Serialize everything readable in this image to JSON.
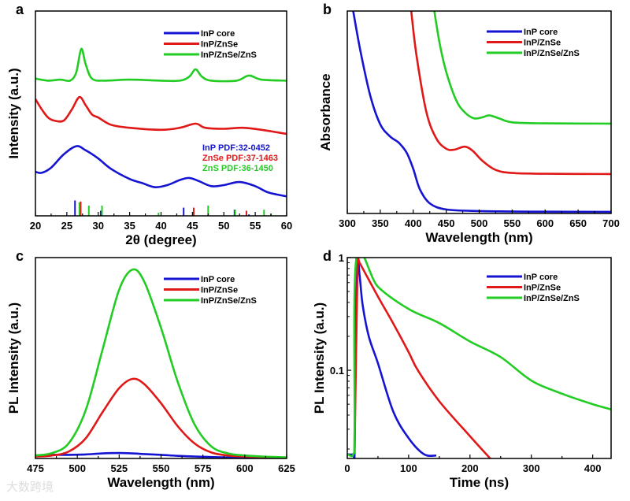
{
  "colors": {
    "InP core": "#1414d2",
    "InP/ZnSe": "#e01818",
    "InP/ZnSe/ZnS": "#22cc22"
  },
  "watermark": "大数跨境",
  "chart_data": [
    {
      "panel": "a",
      "type": "line",
      "xlabel": "2θ (degree)",
      "ylabel": "Intensity (a.u.)",
      "xlim": [
        20,
        60
      ],
      "ylim": [
        0,
        100
      ],
      "xticks": [
        20,
        25,
        30,
        35,
        40,
        45,
        50,
        55,
        60
      ],
      "legend": "top-right",
      "series": [
        {
          "name": "InP core",
          "points": [
            [
              20,
              21.5
            ],
            [
              21,
              21
            ],
            [
              22.5,
              23.5
            ],
            [
              24.5,
              30
            ],
            [
              26.5,
              34
            ],
            [
              28,
              32
            ],
            [
              30,
              28
            ],
            [
              32,
              23
            ],
            [
              35,
              18
            ],
            [
              37,
              16
            ],
            [
              39,
              14
            ],
            [
              41,
              15
            ],
            [
              43,
              17.5
            ],
            [
              44.5,
              18.5
            ],
            [
              46,
              17
            ],
            [
              48,
              14.5
            ],
            [
              50,
              15
            ],
            [
              52.5,
              16.5
            ],
            [
              55,
              14.5
            ],
            [
              57,
              11.5
            ],
            [
              60,
              9.5
            ]
          ]
        },
        {
          "name": "InP/ZnSe",
          "points": [
            [
              20,
              57
            ],
            [
              21,
              52
            ],
            [
              22,
              48
            ],
            [
              23,
              46.5
            ],
            [
              24.5,
              46.5
            ],
            [
              25.8,
              52
            ],
            [
              27,
              58
            ],
            [
              28,
              54
            ],
            [
              29,
              49.5
            ],
            [
              30,
              48
            ],
            [
              32,
              44.5
            ],
            [
              35,
              43
            ],
            [
              40,
              42
            ],
            [
              43,
              43
            ],
            [
              45.5,
              45
            ],
            [
              47,
              43
            ],
            [
              50,
              42.5
            ],
            [
              53,
              43
            ],
            [
              56,
              42
            ],
            [
              60,
              40
            ]
          ]
        },
        {
          "name": "InP/ZnSe/ZnS",
          "points": [
            [
              20,
              67
            ],
            [
              22,
              66
            ],
            [
              24,
              66.5
            ],
            [
              25.5,
              66
            ],
            [
              26.5,
              70
            ],
            [
              27.3,
              81.5
            ],
            [
              28,
              74
            ],
            [
              29,
              67
            ],
            [
              31,
              66
            ],
            [
              35,
              66.5
            ],
            [
              40,
              66
            ],
            [
              43,
              66
            ],
            [
              44.5,
              68
            ],
            [
              45.5,
              71.5
            ],
            [
              46.5,
              68
            ],
            [
              48,
              66
            ],
            [
              52,
              66
            ],
            [
              54,
              68.5
            ],
            [
              56,
              66.5
            ],
            [
              60,
              66
            ]
          ]
        }
      ],
      "references": [
        {
          "label": "InP PDF:32-0452",
          "color": "#1414d2",
          "sticks": [
            [
              26.3,
              7.5
            ],
            [
              30.4,
              2.5
            ],
            [
              43.6,
              4
            ],
            [
              51.7,
              3
            ],
            [
              54,
              0.7
            ]
          ]
        },
        {
          "label": "ZnSe PDF:37-1463",
          "color": "#e01818",
          "sticks": [
            [
              27.2,
              7
            ],
            [
              45.2,
              4
            ],
            [
              53.6,
              2.5
            ]
          ]
        },
        {
          "label": "ZnS PDF:36-1450",
          "color": "#22cc22",
          "sticks": [
            [
              27.0,
              6.5
            ],
            [
              28.5,
              5
            ],
            [
              30.6,
              5
            ],
            [
              39.6,
              1.5
            ],
            [
              47.5,
              5
            ],
            [
              51.8,
              3
            ],
            [
              56.4,
              3
            ],
            [
              57.5,
              1
            ]
          ]
        }
      ]
    },
    {
      "panel": "b",
      "type": "line",
      "xlabel": "Wavelength (nm)",
      "ylabel": "Absorbance",
      "xlim": [
        300,
        700
      ],
      "ylim": [
        0,
        100
      ],
      "xticks": [
        300,
        350,
        400,
        450,
        500,
        550,
        600,
        650,
        700
      ],
      "legend": "top-right",
      "series": [
        {
          "name": "InP core",
          "points": [
            [
              309,
              100
            ],
            [
              320,
              80
            ],
            [
              335,
              58
            ],
            [
              350,
              44
            ],
            [
              365,
              38
            ],
            [
              378,
              35
            ],
            [
              390,
              30
            ],
            [
              400,
              22
            ],
            [
              410,
              12
            ],
            [
              425,
              5
            ],
            [
              450,
              2
            ],
            [
              500,
              1.2
            ],
            [
              600,
              0.9
            ],
            [
              700,
              0.8
            ]
          ]
        },
        {
          "name": "InP/ZnSe",
          "points": [
            [
              397,
              100
            ],
            [
              405,
              78
            ],
            [
              420,
              50
            ],
            [
              435,
              37
            ],
            [
              450,
              32
            ],
            [
              462,
              31.5
            ],
            [
              478,
              33
            ],
            [
              490,
              31
            ],
            [
              505,
              26
            ],
            [
              525,
              21.5
            ],
            [
              550,
              20
            ],
            [
              600,
              19.6
            ],
            [
              700,
              19.5
            ]
          ]
        },
        {
          "name": "InP/ZnSe/ZnS",
          "points": [
            [
              432,
              100
            ],
            [
              440,
              84
            ],
            [
              450,
              70
            ],
            [
              465,
              56
            ],
            [
              478,
              50
            ],
            [
              492,
              47
            ],
            [
              505,
              47.5
            ],
            [
              515,
              48.5
            ],
            [
              530,
              47
            ],
            [
              550,
              45
            ],
            [
              600,
              44.5
            ],
            [
              700,
              44.4
            ]
          ]
        }
      ]
    },
    {
      "panel": "c",
      "type": "line",
      "xlabel": "Wavelength (nm)",
      "ylabel": "PL Intensity (a.u.)",
      "xlim": [
        475,
        625
      ],
      "ylim": [
        0,
        100
      ],
      "xticks": [
        475,
        500,
        525,
        550,
        575,
        600,
        625
      ],
      "legend": "top-right",
      "series": [
        {
          "name": "InP core",
          "points": [
            [
              475,
              1.5
            ],
            [
              485,
              1.8
            ],
            [
              495,
              1.8
            ],
            [
              505,
              2.0
            ],
            [
              515,
              2.5
            ],
            [
              525,
              2.7
            ],
            [
              533,
              2.5
            ],
            [
              540,
              2.2
            ],
            [
              550,
              1.8
            ],
            [
              560,
              1.3
            ],
            [
              570,
              1.0
            ],
            [
              580,
              0.7
            ],
            [
              590,
              0.5
            ],
            [
              600,
              0.3
            ],
            [
              610,
              0.2
            ],
            [
              625,
              0.1
            ]
          ]
        },
        {
          "name": "InP/ZnSe",
          "points": [
            [
              475,
              1
            ],
            [
              485,
              1.5
            ],
            [
              495,
              3.5
            ],
            [
              505,
              10
            ],
            [
              515,
              23
            ],
            [
              525,
              35
            ],
            [
              533,
              39.6
            ],
            [
              540,
              37
            ],
            [
              550,
              27.5
            ],
            [
              560,
              16
            ],
            [
              570,
              7.5
            ],
            [
              580,
              3
            ],
            [
              590,
              1.5
            ],
            [
              600,
              1
            ],
            [
              610,
              0.7
            ],
            [
              625,
              0.4
            ]
          ]
        },
        {
          "name": "InP/ZnSe/ZnS",
          "points": [
            [
              475,
              1.5
            ],
            [
              485,
              2.7
            ],
            [
              495,
              7.7
            ],
            [
              505,
              24
            ],
            [
              515,
              54
            ],
            [
              525,
              84
            ],
            [
              533,
              94
            ],
            [
              540,
              88
            ],
            [
              550,
              65
            ],
            [
              560,
              38
            ],
            [
              570,
              17
            ],
            [
              580,
              6
            ],
            [
              590,
              2.5
            ],
            [
              600,
              1.5
            ],
            [
              610,
              1
            ],
            [
              625,
              0.5
            ]
          ]
        }
      ]
    },
    {
      "panel": "d",
      "type": "line",
      "yscale": "log",
      "xlabel": "Time (ns)",
      "ylabel": "PL Intensity (a.u.)",
      "xlim": [
        0,
        430
      ],
      "ylim": [
        0.0165,
        1
      ],
      "xticks": [
        0,
        100,
        200,
        300,
        400
      ],
      "yticks": [
        {
          "value": 1,
          "label": "1"
        },
        {
          "value": 0.1,
          "label": "0.1"
        }
      ],
      "legend": "top-right",
      "series": [
        {
          "name": "InP core",
          "points": [
            [
              0,
              0.018
            ],
            [
              10,
              0.018
            ],
            [
              12,
              0.02
            ],
            [
              15,
              1
            ],
            [
              20,
              0.7
            ],
            [
              25,
              0.38
            ],
            [
              35,
              0.2
            ],
            [
              50,
              0.115
            ],
            [
              75,
              0.043
            ],
            [
              100,
              0.025
            ],
            [
              125,
              0.018
            ],
            [
              145,
              0.0175
            ]
          ]
        },
        {
          "name": "InP/ZnSe",
          "points": [
            [
              12,
              0.02
            ],
            [
              17,
              0.95
            ],
            [
              20,
              0.9
            ],
            [
              50,
              0.45
            ],
            [
              75,
              0.26
            ],
            [
              100,
              0.145
            ],
            [
              115,
              0.1
            ],
            [
              150,
              0.053
            ],
            [
              200,
              0.026
            ],
            [
              233,
              0.0165
            ]
          ]
        },
        {
          "name": "InP/ZnSe/ZnS",
          "points": [
            [
              0,
              0.018
            ],
            [
              10,
              0.018
            ],
            [
              12,
              0.03
            ],
            [
              15,
              1
            ],
            [
              50,
              0.55
            ],
            [
              100,
              0.35
            ],
            [
              150,
              0.262
            ],
            [
              200,
              0.18
            ],
            [
              250,
              0.131
            ],
            [
              300,
              0.081
            ],
            [
              350,
              0.062
            ],
            [
              400,
              0.05
            ],
            [
              430,
              0.045
            ]
          ]
        }
      ]
    }
  ]
}
